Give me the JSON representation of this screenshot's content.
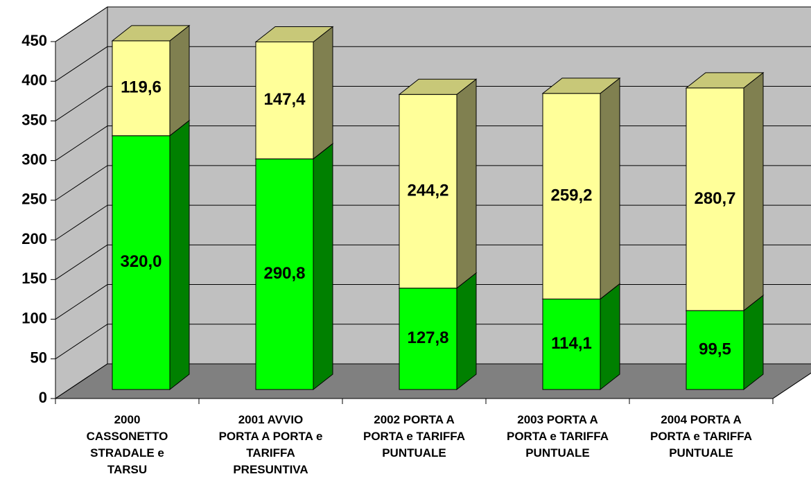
{
  "chart_data": {
    "type": "bar3d-stacked",
    "categories": [
      "2000\nCASSONETTO\nSTRADALE e\nTARSU",
      "2001 AVVIO\nPORTA A PORTA e\nTARIFFA\nPRESUNTIVA",
      "2002 PORTA A\nPORTA e TARIFFA\nPUNTUALE",
      "2003 PORTA A\nPORTA e TARIFFA\nPUNTUALE",
      "2004 PORTA A\nPORTA e TARIFFA\nPUNTUALE"
    ],
    "series": [
      {
        "color": "#00ff00",
        "side_color": "#008000",
        "top_color": "#00c000",
        "values": [
          320.0,
          290.8,
          127.8,
          114.1,
          99.5
        ],
        "value_labels": [
          "320,0",
          "290,8",
          "127,8",
          "114,1",
          "99,5"
        ]
      },
      {
        "color": "#ffff99",
        "side_color": "#808050",
        "top_color": "#c8c878",
        "values": [
          119.6,
          147.4,
          244.2,
          259.2,
          280.7
        ],
        "value_labels": [
          "119,6",
          "147,4",
          "244,2",
          "259,2",
          "280,7"
        ]
      }
    ],
    "ylim": [
      0,
      450
    ],
    "yticks": [
      0,
      50,
      100,
      150,
      200,
      250,
      300,
      350,
      400,
      450
    ],
    "grid": true
  }
}
